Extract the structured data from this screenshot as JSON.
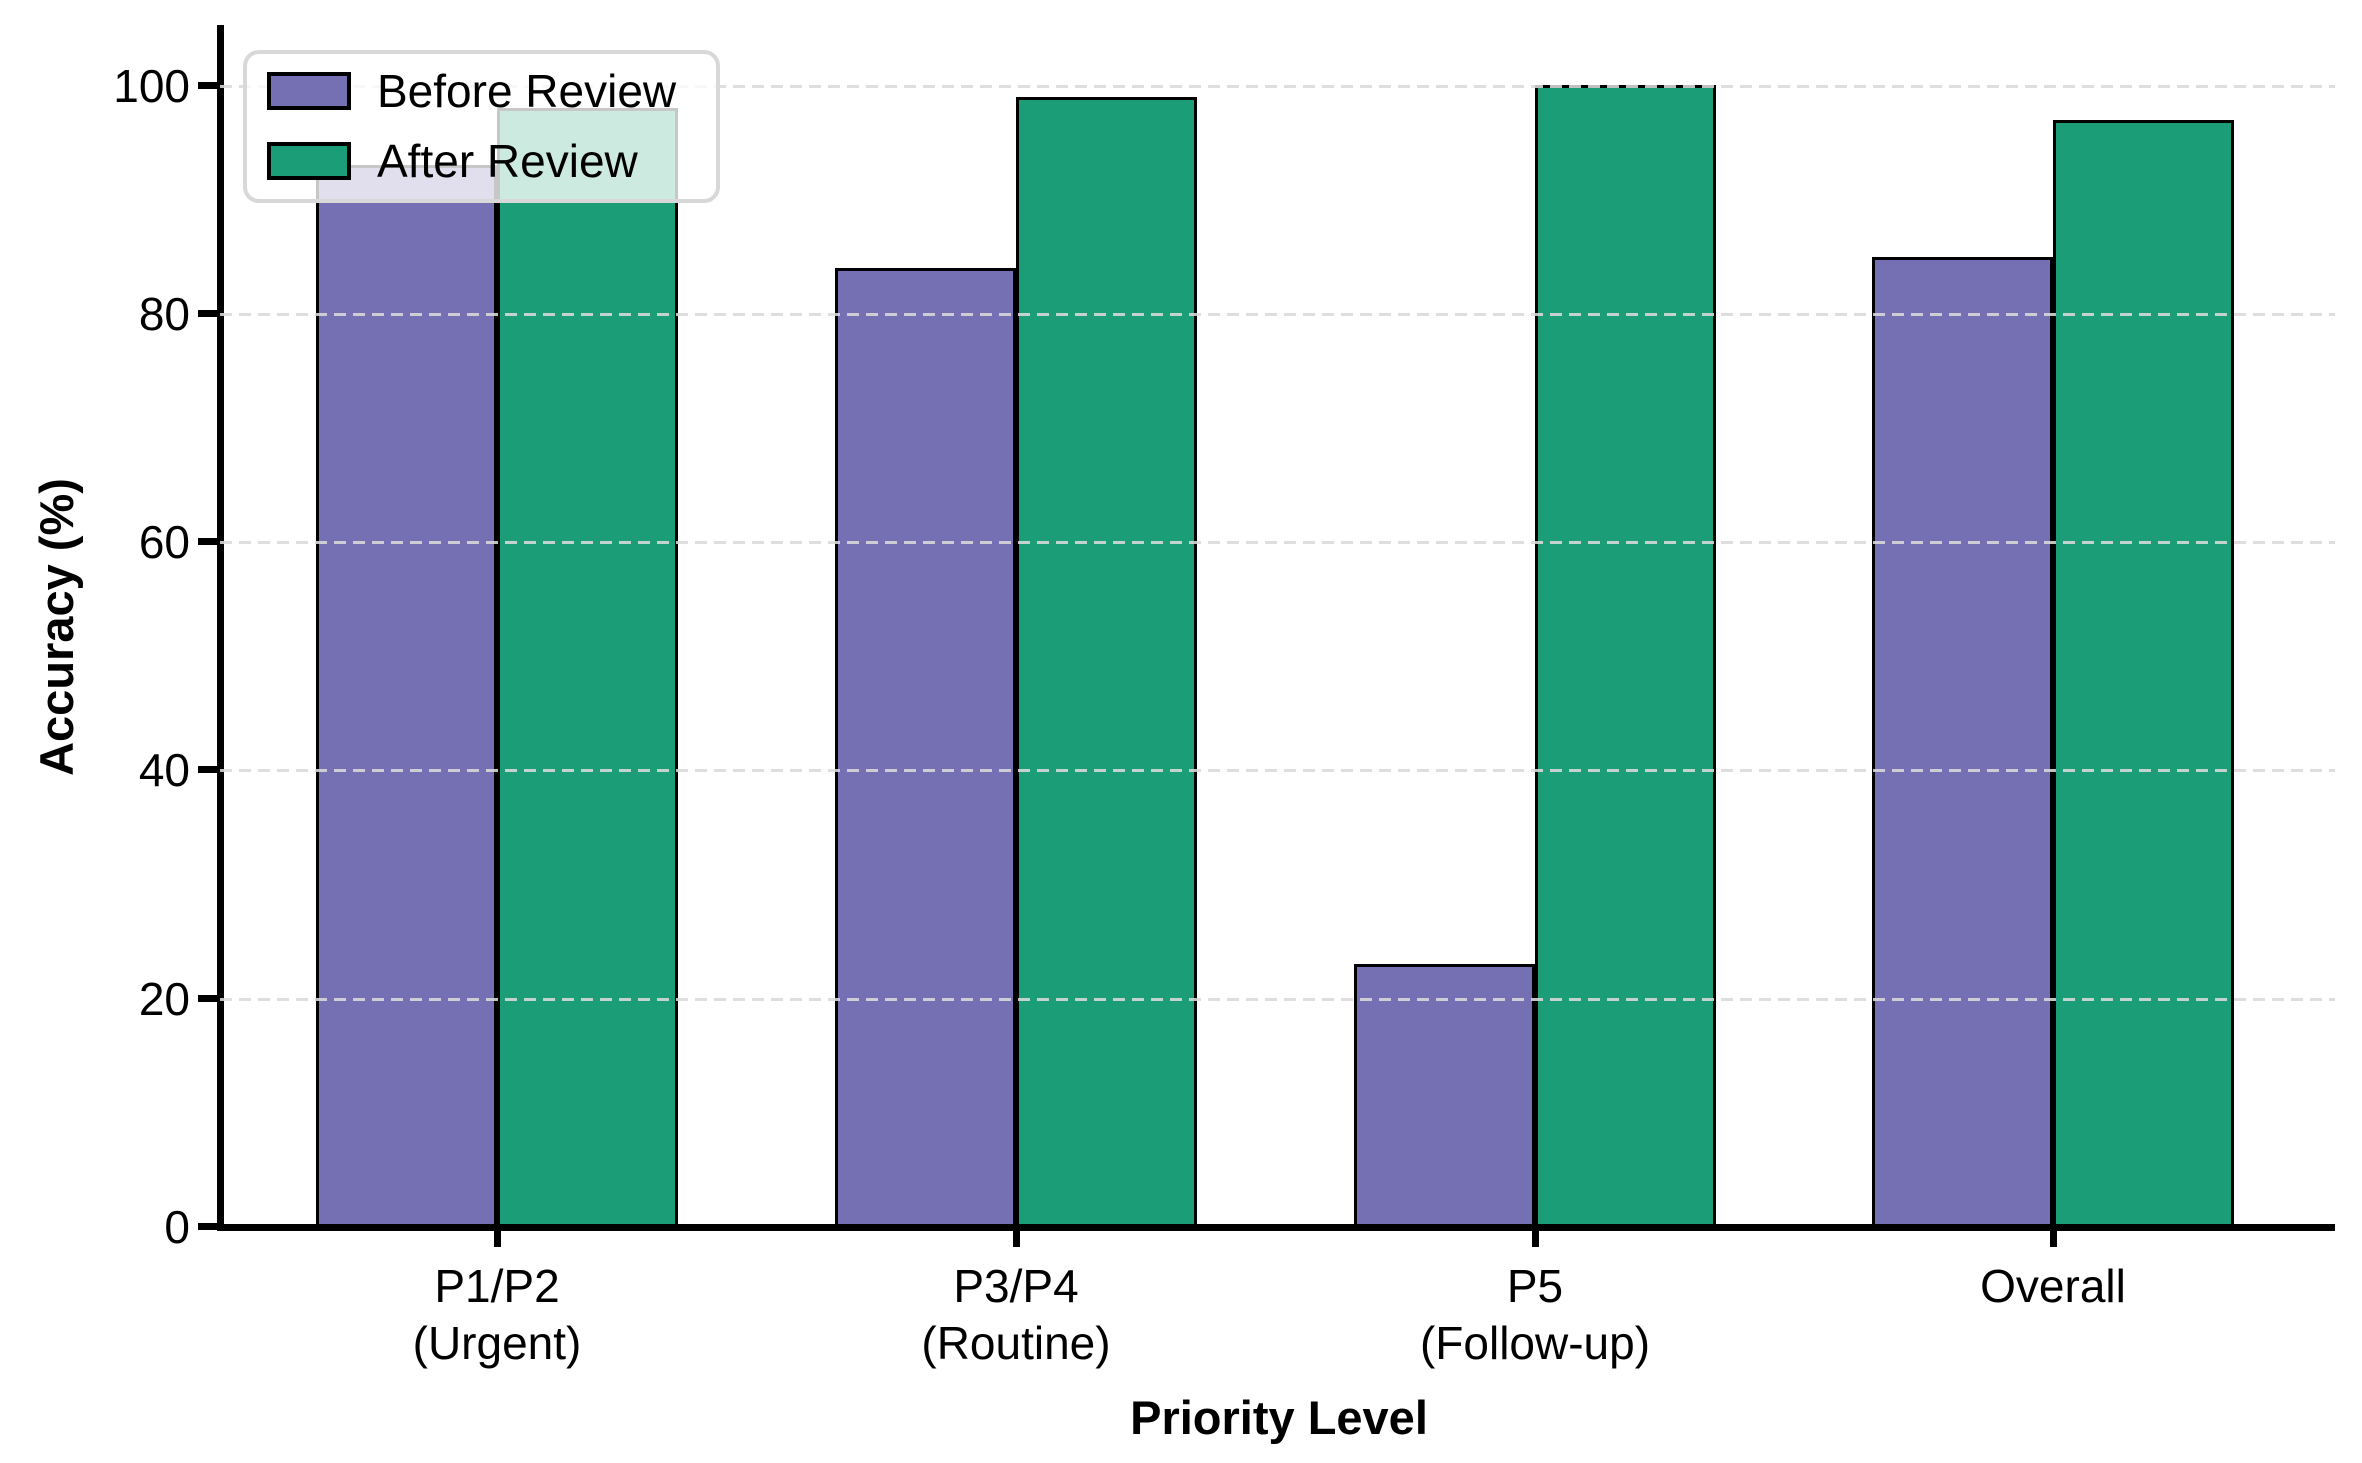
{
  "figure": {
    "background": "#ffffff"
  },
  "chart_data": {
    "type": "bar",
    "title": "",
    "xlabel": "Priority Level",
    "ylabel": "Accuracy (%)",
    "categories": [
      "P1/P2\n(Urgent)",
      "P3/P4\n(Routine)",
      "P5\n(Follow-up)",
      "Overall"
    ],
    "series": [
      {
        "name": "Before Review",
        "color": "#7570B3",
        "values": [
          93,
          84,
          23,
          85
        ]
      },
      {
        "name": "After Review",
        "color": "#1B9E77",
        "values": [
          98,
          99,
          100,
          97
        ]
      }
    ],
    "ylim": [
      0,
      105
    ],
    "yticks": [
      0,
      20,
      40,
      60,
      80,
      100
    ],
    "grid": "horizontal-dashed-above-bars",
    "gridline_color": "#dadada",
    "axis_color": "#000000",
    "bar_edge_color": "#000000",
    "legend_position": "upper-left",
    "legend_labels": [
      "Before Review",
      "After Review"
    ]
  }
}
